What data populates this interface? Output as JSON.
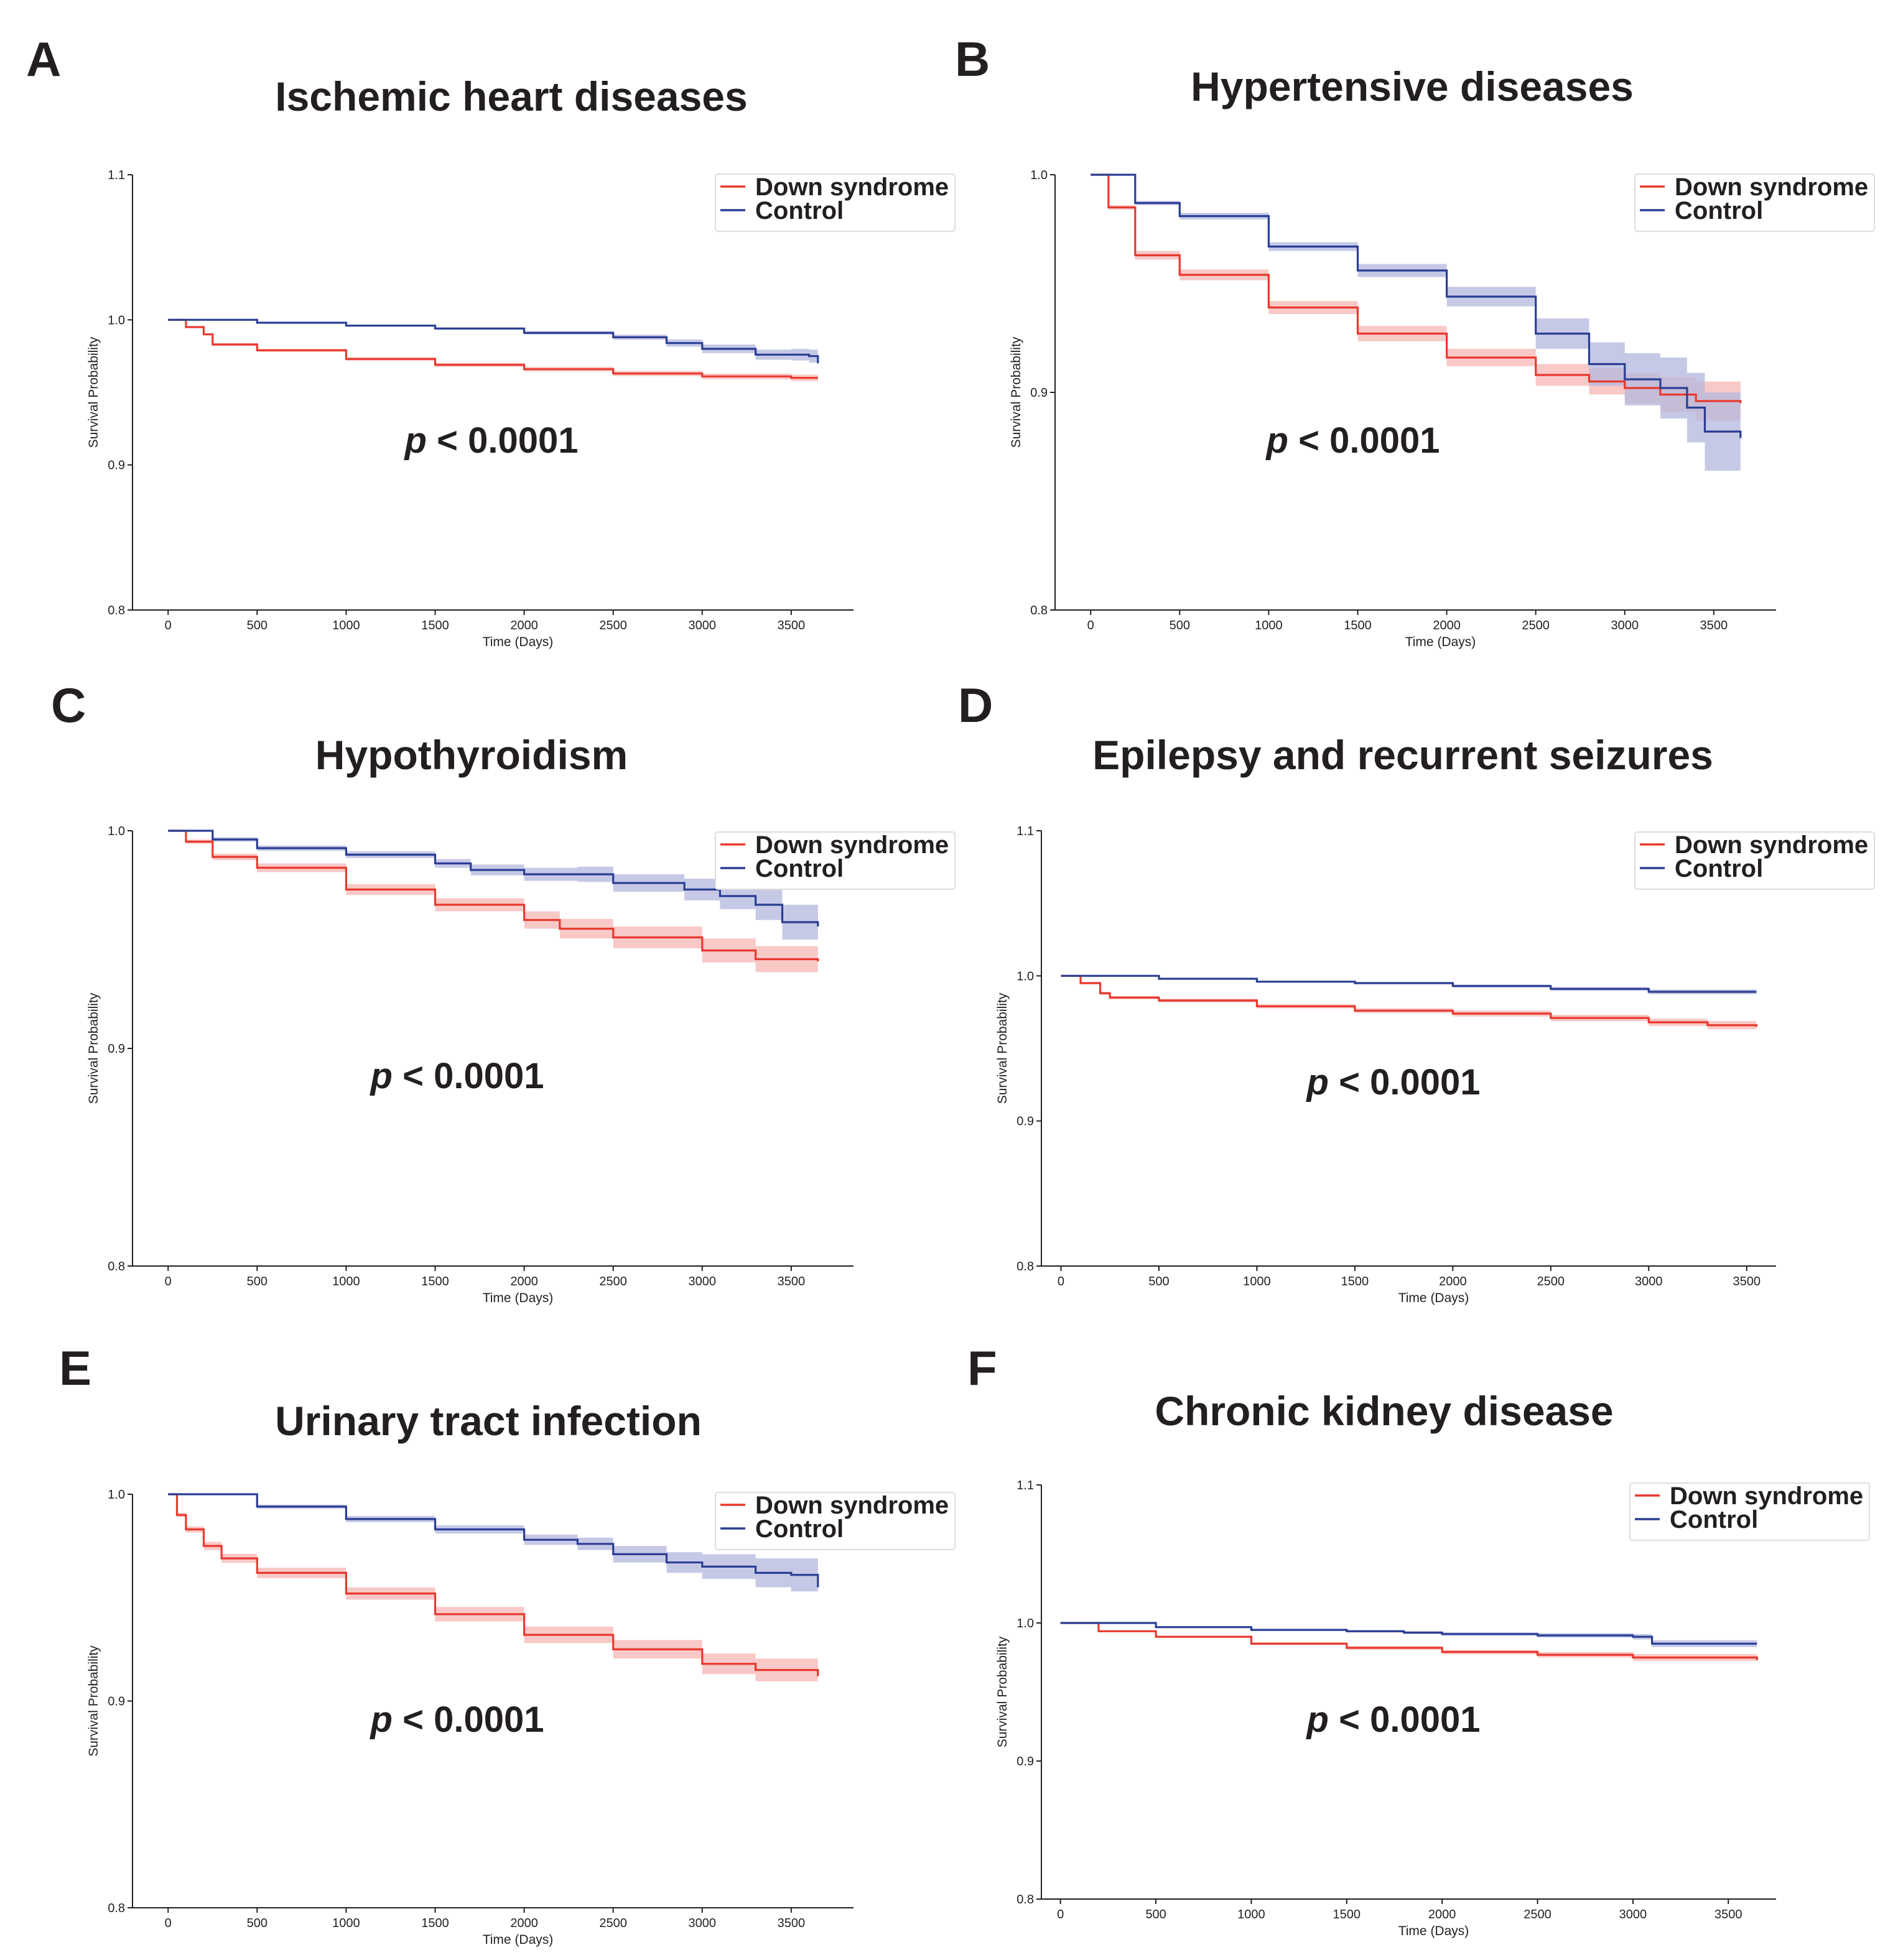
{
  "figure": {
    "legend_labels": [
      "Down syndrome",
      "Control"
    ],
    "colors": {
      "down_syndrome": "#e8392f",
      "control": "#2a3e94",
      "down_band": "#f7b7b4",
      "control_band": "#b3b7dd",
      "text": "#231f20"
    }
  },
  "chart_data": [
    {
      "panel": "A",
      "type": "line",
      "title": "Ischemic heart diseases",
      "xlabel": "Time (Days)",
      "ylabel": "Survival Probability",
      "xlim": [
        -200,
        3850
      ],
      "ylim": [
        0.8,
        1.1
      ],
      "xticks": [
        0,
        500,
        1000,
        1500,
        2000,
        2500,
        3000,
        3500
      ],
      "xtick_labels": [
        "0",
        "500",
        "1000",
        "1500",
        "2000",
        "2500",
        "3000",
        "3500"
      ],
      "yticks": [
        0.8,
        0.9,
        1.0,
        1.1
      ],
      "ytick_labels": [
        "0.8",
        "0.9",
        "1.0",
        "1.1"
      ],
      "legend": [
        "Down syndrome",
        "Control"
      ],
      "annotation": {
        "italic": "p",
        "text": " < 0.0001"
      },
      "series": [
        {
          "name": "Down syndrome",
          "x": [
            0,
            100,
            200,
            250,
            500,
            1000,
            1500,
            2000,
            2500,
            3000,
            3500,
            3650
          ],
          "y": [
            1.0,
            0.995,
            0.99,
            0.983,
            0.979,
            0.973,
            0.969,
            0.966,
            0.963,
            0.961,
            0.96,
            0.96
          ],
          "ci": [
            0,
            0.0005,
            0.0007,
            0.001,
            0.001,
            0.0012,
            0.0014,
            0.0016,
            0.0018,
            0.002,
            0.0022,
            0.0025
          ]
        },
        {
          "name": "Control",
          "x": [
            0,
            500,
            1000,
            1500,
            2000,
            2500,
            2800,
            3000,
            3300,
            3500,
            3600,
            3650
          ],
          "y": [
            1.0,
            0.998,
            0.996,
            0.994,
            0.991,
            0.988,
            0.984,
            0.98,
            0.976,
            0.976,
            0.975,
            0.97
          ],
          "ci": [
            0,
            0.0004,
            0.0006,
            0.0008,
            0.0012,
            0.0018,
            0.0025,
            0.003,
            0.0035,
            0.004,
            0.0045,
            0.005
          ]
        }
      ]
    },
    {
      "panel": "B",
      "type": "line",
      "title": "Hypertensive diseases",
      "xlabel": "Time (Days)",
      "ylabel": "Survival Probability",
      "xlim": [
        -200,
        3850
      ],
      "ylim": [
        0.8,
        1.0
      ],
      "xticks": [
        0,
        500,
        1000,
        1500,
        2000,
        2500,
        3000,
        3500
      ],
      "xtick_labels": [
        "0",
        "500",
        "1000",
        "1500",
        "2000",
        "2500",
        "3000",
        "3500"
      ],
      "yticks": [
        0.8,
        0.9,
        1.0
      ],
      "ytick_labels": [
        "0.8",
        "0.9",
        "1.0"
      ],
      "legend": [
        "Down syndrome",
        "Control"
      ],
      "annotation": {
        "italic": "p",
        "text": " < 0.0001"
      },
      "series": [
        {
          "name": "Down syndrome",
          "x": [
            0,
            100,
            250,
            500,
            1000,
            1500,
            2000,
            2500,
            2800,
            3000,
            3200,
            3400,
            3650
          ],
          "y": [
            1.0,
            0.985,
            0.963,
            0.954,
            0.939,
            0.927,
            0.916,
            0.908,
            0.905,
            0.902,
            0.899,
            0.896,
            0.895
          ],
          "ci": [
            0,
            0.001,
            0.002,
            0.0025,
            0.003,
            0.0035,
            0.004,
            0.005,
            0.006,
            0.007,
            0.008,
            0.009,
            0.01
          ]
        },
        {
          "name": "Control",
          "x": [
            0,
            250,
            500,
            1000,
            1500,
            2000,
            2500,
            2800,
            3000,
            3200,
            3350,
            3450,
            3650
          ],
          "y": [
            1.0,
            0.987,
            0.981,
            0.967,
            0.956,
            0.944,
            0.927,
            0.913,
            0.906,
            0.902,
            0.893,
            0.882,
            0.879
          ],
          "ci": [
            0,
            0.001,
            0.0015,
            0.002,
            0.003,
            0.0045,
            0.007,
            0.01,
            0.012,
            0.014,
            0.016,
            0.018,
            0.02
          ]
        }
      ]
    },
    {
      "panel": "C",
      "type": "line",
      "title": "Hypothyroidism",
      "xlabel": "Time (Days)",
      "ylabel": "Survival Probability",
      "xlim": [
        -200,
        3850
      ],
      "ylim": [
        0.8,
        1.0
      ],
      "xticks": [
        0,
        500,
        1000,
        1500,
        2000,
        2500,
        3000,
        3500
      ],
      "xtick_labels": [
        "0",
        "500",
        "1000",
        "1500",
        "2000",
        "2500",
        "3000",
        "3500"
      ],
      "yticks": [
        0.8,
        0.9,
        1.0
      ],
      "ytick_labels": [
        "0.8",
        "0.9",
        "1.0"
      ],
      "legend": [
        "Down syndrome",
        "Control"
      ],
      "annotation": {
        "italic": "p",
        "text": " < 0.0001"
      },
      "series": [
        {
          "name": "Down syndrome",
          "x": [
            0,
            100,
            250,
            500,
            1000,
            1500,
            2000,
            2200,
            2500,
            3000,
            3300,
            3650
          ],
          "y": [
            1.0,
            0.995,
            0.988,
            0.983,
            0.973,
            0.966,
            0.959,
            0.955,
            0.951,
            0.945,
            0.941,
            0.94
          ],
          "ci": [
            0,
            0.001,
            0.0015,
            0.002,
            0.0025,
            0.003,
            0.004,
            0.0045,
            0.005,
            0.0055,
            0.006,
            0.007
          ]
        },
        {
          "name": "Control",
          "x": [
            0,
            250,
            500,
            1000,
            1500,
            1700,
            2000,
            2300,
            2500,
            2900,
            3100,
            3300,
            3450,
            3650
          ],
          "y": [
            1.0,
            0.996,
            0.992,
            0.989,
            0.985,
            0.982,
            0.98,
            0.98,
            0.976,
            0.973,
            0.97,
            0.966,
            0.958,
            0.956
          ],
          "ci": [
            0,
            0.001,
            0.0012,
            0.0015,
            0.002,
            0.0025,
            0.003,
            0.0035,
            0.004,
            0.005,
            0.006,
            0.007,
            0.008,
            0.009
          ]
        }
      ]
    },
    {
      "panel": "D",
      "type": "line",
      "title": "Epilepsy and recurrent seizures",
      "xlabel": "Time (Days)",
      "ylabel": "Survival Probability",
      "xlim": [
        -100,
        3650
      ],
      "ylim": [
        0.8,
        1.1
      ],
      "xticks": [
        0,
        500,
        1000,
        1500,
        2000,
        2500,
        3000,
        3500
      ],
      "xtick_labels": [
        "0",
        "500",
        "1000",
        "1500",
        "2000",
        "2500",
        "3000",
        "3500"
      ],
      "yticks": [
        0.8,
        0.9,
        1.0,
        1.1
      ],
      "ytick_labels": [
        "0.8",
        "0.9",
        "1.0",
        "1.1"
      ],
      "legend": [
        "Down syndrome",
        "Control"
      ],
      "annotation": {
        "italic": "p",
        "text": " < 0.0001"
      },
      "series": [
        {
          "name": "Down syndrome",
          "x": [
            0,
            100,
            200,
            250,
            500,
            1000,
            1500,
            2000,
            2500,
            3000,
            3300,
            3550
          ],
          "y": [
            1.0,
            0.995,
            0.988,
            0.985,
            0.983,
            0.979,
            0.976,
            0.974,
            0.971,
            0.968,
            0.966,
            0.965
          ],
          "ci": [
            0,
            0.0008,
            0.001,
            0.0012,
            0.0013,
            0.0015,
            0.0017,
            0.002,
            0.0022,
            0.0025,
            0.0028,
            0.003
          ]
        },
        {
          "name": "Control",
          "x": [
            0,
            500,
            1000,
            1500,
            2000,
            2500,
            3000,
            3550
          ],
          "y": [
            1.0,
            0.998,
            0.996,
            0.995,
            0.993,
            0.991,
            0.989,
            0.989
          ],
          "ci": [
            0,
            0.0004,
            0.0006,
            0.0008,
            0.001,
            0.0013,
            0.0016,
            0.002
          ]
        }
      ]
    },
    {
      "panel": "E",
      "type": "line",
      "title": "Urinary tract infection",
      "xlabel": "Time (Days)",
      "ylabel": "Survival Probability",
      "xlim": [
        -200,
        3850
      ],
      "ylim": [
        0.8,
        1.0
      ],
      "xticks": [
        0,
        500,
        1000,
        1500,
        2000,
        2500,
        3000,
        3500
      ],
      "xtick_labels": [
        "0",
        "500",
        "1000",
        "1500",
        "2000",
        "2500",
        "3000",
        "3500"
      ],
      "yticks": [
        0.8,
        0.9,
        1.0
      ],
      "ytick_labels": [
        "0.8",
        "0.9",
        "1.0"
      ],
      "legend": [
        "Down syndrome",
        "Control"
      ],
      "annotation": {
        "italic": "p",
        "text": " < 0.0001"
      },
      "series": [
        {
          "name": "Down syndrome",
          "x": [
            0,
            50,
            100,
            200,
            300,
            500,
            1000,
            1500,
            2000,
            2500,
            3000,
            3300,
            3650
          ],
          "y": [
            1.0,
            0.99,
            0.983,
            0.975,
            0.969,
            0.962,
            0.952,
            0.942,
            0.932,
            0.925,
            0.918,
            0.915,
            0.912
          ],
          "ci": [
            0,
            0.001,
            0.0015,
            0.002,
            0.0022,
            0.0025,
            0.003,
            0.0035,
            0.004,
            0.0045,
            0.005,
            0.0055,
            0.006
          ]
        },
        {
          "name": "Control",
          "x": [
            0,
            500,
            1000,
            1500,
            2000,
            2300,
            2500,
            2800,
            3000,
            3300,
            3500,
            3650
          ],
          "y": [
            1.0,
            0.994,
            0.988,
            0.983,
            0.978,
            0.976,
            0.971,
            0.967,
            0.965,
            0.962,
            0.961,
            0.955
          ],
          "ci": [
            0,
            0.001,
            0.0015,
            0.002,
            0.0025,
            0.003,
            0.004,
            0.005,
            0.006,
            0.007,
            0.008,
            0.009
          ]
        }
      ]
    },
    {
      "panel": "F",
      "type": "line",
      "title": "Chronic kidney disease",
      "xlabel": "Time (Days)",
      "ylabel": "Survival Probability",
      "xlim": [
        -100,
        3750
      ],
      "ylim": [
        0.8,
        1.1
      ],
      "xticks": [
        0,
        500,
        1000,
        1500,
        2000,
        2500,
        3000,
        3500
      ],
      "xtick_labels": [
        "0",
        "500",
        "1000",
        "1500",
        "2000",
        "2500",
        "3000",
        "3500"
      ],
      "yticks": [
        0.8,
        0.9,
        1.0,
        1.1
      ],
      "ytick_labels": [
        "0.8",
        "0.9",
        "1.0",
        "1.1"
      ],
      "legend": [
        "Down syndrome",
        "Control"
      ],
      "annotation": {
        "italic": "p",
        "text": " < 0.0001"
      },
      "series": [
        {
          "name": "Down syndrome",
          "x": [
            0,
            200,
            500,
            1000,
            1500,
            2000,
            2500,
            3000,
            3650
          ],
          "y": [
            1.0,
            0.994,
            0.99,
            0.985,
            0.982,
            0.979,
            0.977,
            0.975,
            0.973
          ],
          "ci": [
            0,
            0.0005,
            0.0008,
            0.001,
            0.0013,
            0.0016,
            0.002,
            0.0025,
            0.003
          ]
        },
        {
          "name": "Control",
          "x": [
            0,
            500,
            1000,
            1500,
            1800,
            2000,
            2500,
            3000,
            3100,
            3650
          ],
          "y": [
            1.0,
            0.997,
            0.995,
            0.994,
            0.993,
            0.992,
            0.991,
            0.99,
            0.985,
            0.985
          ],
          "ci": [
            0,
            0.0005,
            0.0007,
            0.0009,
            0.001,
            0.0012,
            0.0016,
            0.002,
            0.0025,
            0.003
          ]
        }
      ]
    }
  ]
}
